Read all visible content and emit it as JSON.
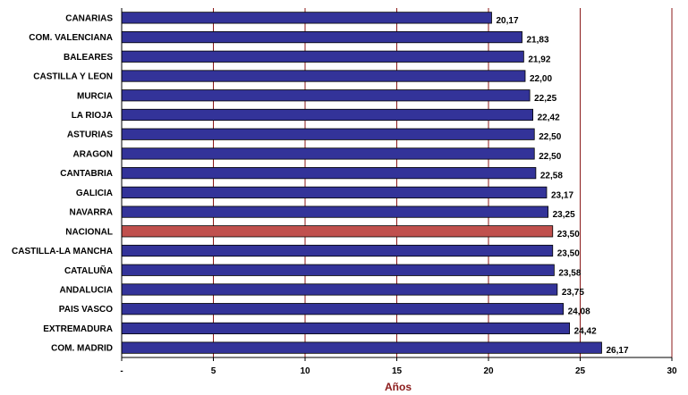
{
  "chart_data": {
    "type": "bar",
    "orientation": "horizontal",
    "categories": [
      "CANARIAS",
      "COM. VALENCIANA",
      "BALEARES",
      "CASTILLA Y LEON",
      "MURCIA",
      "LA RIOJA",
      "ASTURIAS",
      "ARAGON",
      "CANTABRIA",
      "GALICIA",
      "NAVARRA",
      "NACIONAL",
      "CASTILLA-LA MANCHA",
      "CATALUÑA",
      "ANDALUCIA",
      "PAIS VASCO",
      "EXTREMADURA",
      "COM. MADRID"
    ],
    "values": [
      20.17,
      21.83,
      21.92,
      22.0,
      22.25,
      22.42,
      22.5,
      22.5,
      22.58,
      23.17,
      23.25,
      23.5,
      23.5,
      23.58,
      23.75,
      24.08,
      24.42,
      26.17
    ],
    "value_labels": [
      "20,17",
      "21,83",
      "21,92",
      "22,00",
      "22,25",
      "22,42",
      "22,50",
      "22,50",
      "22,58",
      "23,17",
      "23,25",
      "23,50",
      "23,50",
      "23,58",
      "23,75",
      "24,08",
      "24,42",
      "26,17"
    ],
    "highlight_category": "NACIONAL",
    "xlabel": "Años",
    "xlim": [
      0,
      30
    ],
    "xticks": [
      0,
      5,
      10,
      15,
      20,
      25,
      30
    ],
    "xtick_labels": [
      "-",
      "5",
      "10",
      "15",
      "20",
      "25",
      "30"
    ],
    "grid": "vertical",
    "legend": "none",
    "colors": {
      "bar": "#333399",
      "highlight": "#c0504d",
      "bar_stroke": "#000000",
      "grid": "#8b1a1a",
      "axis_title": "#8b1a1a"
    }
  }
}
